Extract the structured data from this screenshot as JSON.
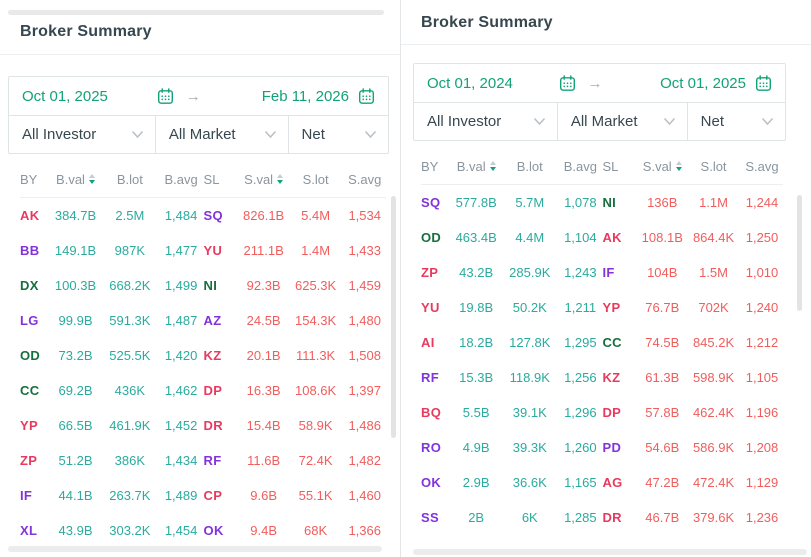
{
  "colors": {
    "accent_green": "#12a277",
    "buy": "#2aab9e",
    "sell": "#f15d5d",
    "code_red": "#e83a5f",
    "code_purple": "#8233db",
    "code_green": "#166f3e",
    "header_text": "#8a959e",
    "title_text": "#37474f"
  },
  "panels": [
    {
      "title": "Broker Summary",
      "date_from": "Oct 01, 2025",
      "date_to": "Feb 11, 2026",
      "filters": [
        "All Investor",
        "All Market",
        "Net"
      ],
      "columns": [
        "BY",
        "B.val",
        "B.lot",
        "B.avg",
        "SL",
        "S.val",
        "S.lot",
        "S.avg"
      ],
      "rows": [
        {
          "by": "AK",
          "by_color": "red",
          "b_val": "384.7B",
          "b_lot": "2.5M",
          "b_avg": "1,484",
          "sl": "SQ",
          "sl_color": "purple",
          "s_val": "826.1B",
          "s_lot": "5.4M",
          "s_avg": "1,534"
        },
        {
          "by": "BB",
          "by_color": "purple",
          "b_val": "149.1B",
          "b_lot": "987K",
          "b_avg": "1,477",
          "sl": "YU",
          "sl_color": "red",
          "s_val": "211.1B",
          "s_lot": "1.4M",
          "s_avg": "1,433"
        },
        {
          "by": "DX",
          "by_color": "green",
          "b_val": "100.3B",
          "b_lot": "668.2K",
          "b_avg": "1,499",
          "sl": "NI",
          "sl_color": "green",
          "s_val": "92.3B",
          "s_lot": "625.3K",
          "s_avg": "1,459"
        },
        {
          "by": "LG",
          "by_color": "purple",
          "b_val": "99.9B",
          "b_lot": "591.3K",
          "b_avg": "1,487",
          "sl": "AZ",
          "sl_color": "purple",
          "s_val": "24.5B",
          "s_lot": "154.3K",
          "s_avg": "1,480"
        },
        {
          "by": "OD",
          "by_color": "green",
          "b_val": "73.2B",
          "b_lot": "525.5K",
          "b_avg": "1,420",
          "sl": "KZ",
          "sl_color": "red",
          "s_val": "20.1B",
          "s_lot": "111.3K",
          "s_avg": "1,508"
        },
        {
          "by": "CC",
          "by_color": "green",
          "b_val": "69.2B",
          "b_lot": "436K",
          "b_avg": "1,462",
          "sl": "DP",
          "sl_color": "red",
          "s_val": "16.3B",
          "s_lot": "108.6K",
          "s_avg": "1,397"
        },
        {
          "by": "YP",
          "by_color": "red",
          "b_val": "66.5B",
          "b_lot": "461.9K",
          "b_avg": "1,452",
          "sl": "DR",
          "sl_color": "red",
          "s_val": "15.4B",
          "s_lot": "58.9K",
          "s_avg": "1,486"
        },
        {
          "by": "ZP",
          "by_color": "red",
          "b_val": "51.2B",
          "b_lot": "386K",
          "b_avg": "1,434",
          "sl": "RF",
          "sl_color": "purple",
          "s_val": "11.6B",
          "s_lot": "72.4K",
          "s_avg": "1,482"
        },
        {
          "by": "IF",
          "by_color": "purple",
          "b_val": "44.1B",
          "b_lot": "263.7K",
          "b_avg": "1,489",
          "sl": "CP",
          "sl_color": "red",
          "s_val": "9.6B",
          "s_lot": "55.1K",
          "s_avg": "1,460"
        },
        {
          "by": "XL",
          "by_color": "purple",
          "b_val": "43.9B",
          "b_lot": "303.2K",
          "b_avg": "1,454",
          "sl": "OK",
          "sl_color": "purple",
          "s_val": "9.4B",
          "s_lot": "68K",
          "s_avg": "1,366"
        }
      ]
    },
    {
      "title": "Broker Summary",
      "date_from": "Oct 01, 2024",
      "date_to": "Oct 01, 2025",
      "filters": [
        "All Investor",
        "All Market",
        "Net"
      ],
      "columns": [
        "BY",
        "B.val",
        "B.lot",
        "B.avg",
        "SL",
        "S.val",
        "S.lot",
        "S.avg"
      ],
      "rows": [
        {
          "by": "SQ",
          "by_color": "purple",
          "b_val": "577.8B",
          "b_lot": "5.7M",
          "b_avg": "1,078",
          "sl": "NI",
          "sl_color": "green",
          "s_val": "136B",
          "s_lot": "1.1M",
          "s_avg": "1,244"
        },
        {
          "by": "OD",
          "by_color": "green",
          "b_val": "463.4B",
          "b_lot": "4.4M",
          "b_avg": "1,104",
          "sl": "AK",
          "sl_color": "red",
          "s_val": "108.1B",
          "s_lot": "864.4K",
          "s_avg": "1,250"
        },
        {
          "by": "ZP",
          "by_color": "red",
          "b_val": "43.2B",
          "b_lot": "285.9K",
          "b_avg": "1,243",
          "sl": "IF",
          "sl_color": "purple",
          "s_val": "104B",
          "s_lot": "1.5M",
          "s_avg": "1,010"
        },
        {
          "by": "YU",
          "by_color": "red",
          "b_val": "19.8B",
          "b_lot": "50.2K",
          "b_avg": "1,211",
          "sl": "YP",
          "sl_color": "red",
          "s_val": "76.7B",
          "s_lot": "702K",
          "s_avg": "1,240"
        },
        {
          "by": "AI",
          "by_color": "red",
          "b_val": "18.2B",
          "b_lot": "127.8K",
          "b_avg": "1,295",
          "sl": "CC",
          "sl_color": "green",
          "s_val": "74.5B",
          "s_lot": "845.2K",
          "s_avg": "1,212"
        },
        {
          "by": "RF",
          "by_color": "purple",
          "b_val": "15.3B",
          "b_lot": "118.9K",
          "b_avg": "1,256",
          "sl": "KZ",
          "sl_color": "red",
          "s_val": "61.3B",
          "s_lot": "598.9K",
          "s_avg": "1,105"
        },
        {
          "by": "BQ",
          "by_color": "red",
          "b_val": "5.5B",
          "b_lot": "39.1K",
          "b_avg": "1,296",
          "sl": "DP",
          "sl_color": "red",
          "s_val": "57.8B",
          "s_lot": "462.4K",
          "s_avg": "1,196"
        },
        {
          "by": "RO",
          "by_color": "purple",
          "b_val": "4.9B",
          "b_lot": "39.3K",
          "b_avg": "1,260",
          "sl": "PD",
          "sl_color": "purple",
          "s_val": "54.6B",
          "s_lot": "586.9K",
          "s_avg": "1,208"
        },
        {
          "by": "OK",
          "by_color": "purple",
          "b_val": "2.9B",
          "b_lot": "36.6K",
          "b_avg": "1,165",
          "sl": "AG",
          "sl_color": "red",
          "s_val": "47.2B",
          "s_lot": "472.4K",
          "s_avg": "1,129"
        },
        {
          "by": "SS",
          "by_color": "purple",
          "b_val": "2B",
          "b_lot": "6K",
          "b_avg": "1,285",
          "sl": "DR",
          "sl_color": "red",
          "s_val": "46.7B",
          "s_lot": "379.6K",
          "s_avg": "1,236"
        }
      ]
    }
  ]
}
